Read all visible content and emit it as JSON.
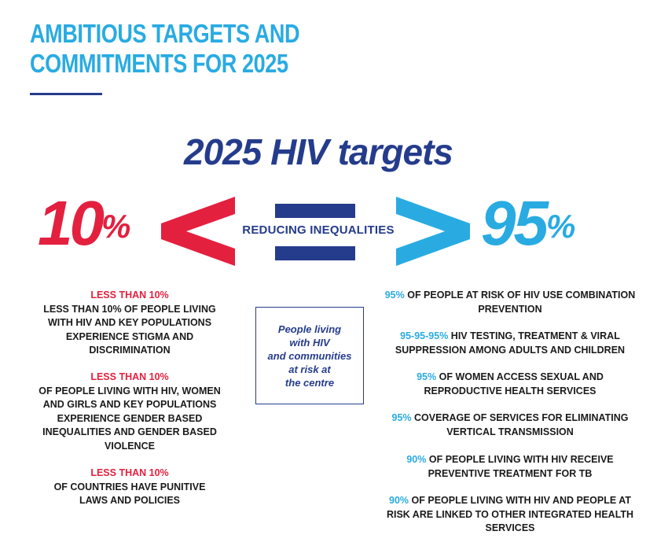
{
  "heading": {
    "line1": "AMBITIOUS TARGETS AND",
    "line2": "COMMITMENTS FOR 2025"
  },
  "hiv_title": "2025 HIV targets",
  "big_left": {
    "number": "10",
    "unit": "%"
  },
  "big_right": {
    "number": "95",
    "unit": "%"
  },
  "center_label": "REDUCING INEQUALITIES",
  "colors": {
    "red": "#e4203f",
    "light_blue": "#29abe2",
    "navy": "#253c8c"
  },
  "centre_box": {
    "lines": [
      "People living",
      "with HIV",
      "and communities",
      "at risk at",
      "the centre"
    ]
  },
  "left_targets": [
    {
      "highlight": "LESS THAN 10%",
      "text": "LESS THAN 10% OF PEOPLE LIVING WITH HIV AND KEY POPULATIONS EXPERIENCE STIGMA AND DISCRIMINATION"
    },
    {
      "highlight": "LESS THAN 10%",
      "text": "OF PEOPLE LIVING WITH HIV, WOMEN AND GIRLS AND KEY POPULATIONS EXPERIENCE GENDER BASED INEQUALITIES AND GENDER BASED VIOLENCE"
    },
    {
      "highlight": "LESS THAN 10%",
      "text": "OF COUNTRIES HAVE PUNITIVE LAWS AND POLICIES"
    }
  ],
  "right_targets": [
    {
      "highlight": "95%",
      "text": "OF PEOPLE AT RISK OF HIV USE COMBINATION PREVENTION"
    },
    {
      "highlight": "95-95-95%",
      "text": "HIV TESTING, TREATMENT & VIRAL SUPPRESSION AMONG ADULTS AND CHILDREN"
    },
    {
      "highlight": "95%",
      "text": "OF WOMEN ACCESS SEXUAL AND REPRODUCTIVE HEALTH SERVICES"
    },
    {
      "highlight": "95%",
      "text": "COVERAGE OF SERVICES FOR ELIMINATING VERTICAL TRANSMISSION"
    },
    {
      "highlight": "90%",
      "text": "OF PEOPLE LIVING WITH HIV RECEIVE PREVENTIVE TREATMENT FOR TB"
    },
    {
      "highlight": "90%",
      "text": "OF PEOPLE LIVING WITH HIV AND PEOPLE AT RISK ARE LINKED TO OTHER INTEGRATED HEALTH SERVICES"
    }
  ]
}
